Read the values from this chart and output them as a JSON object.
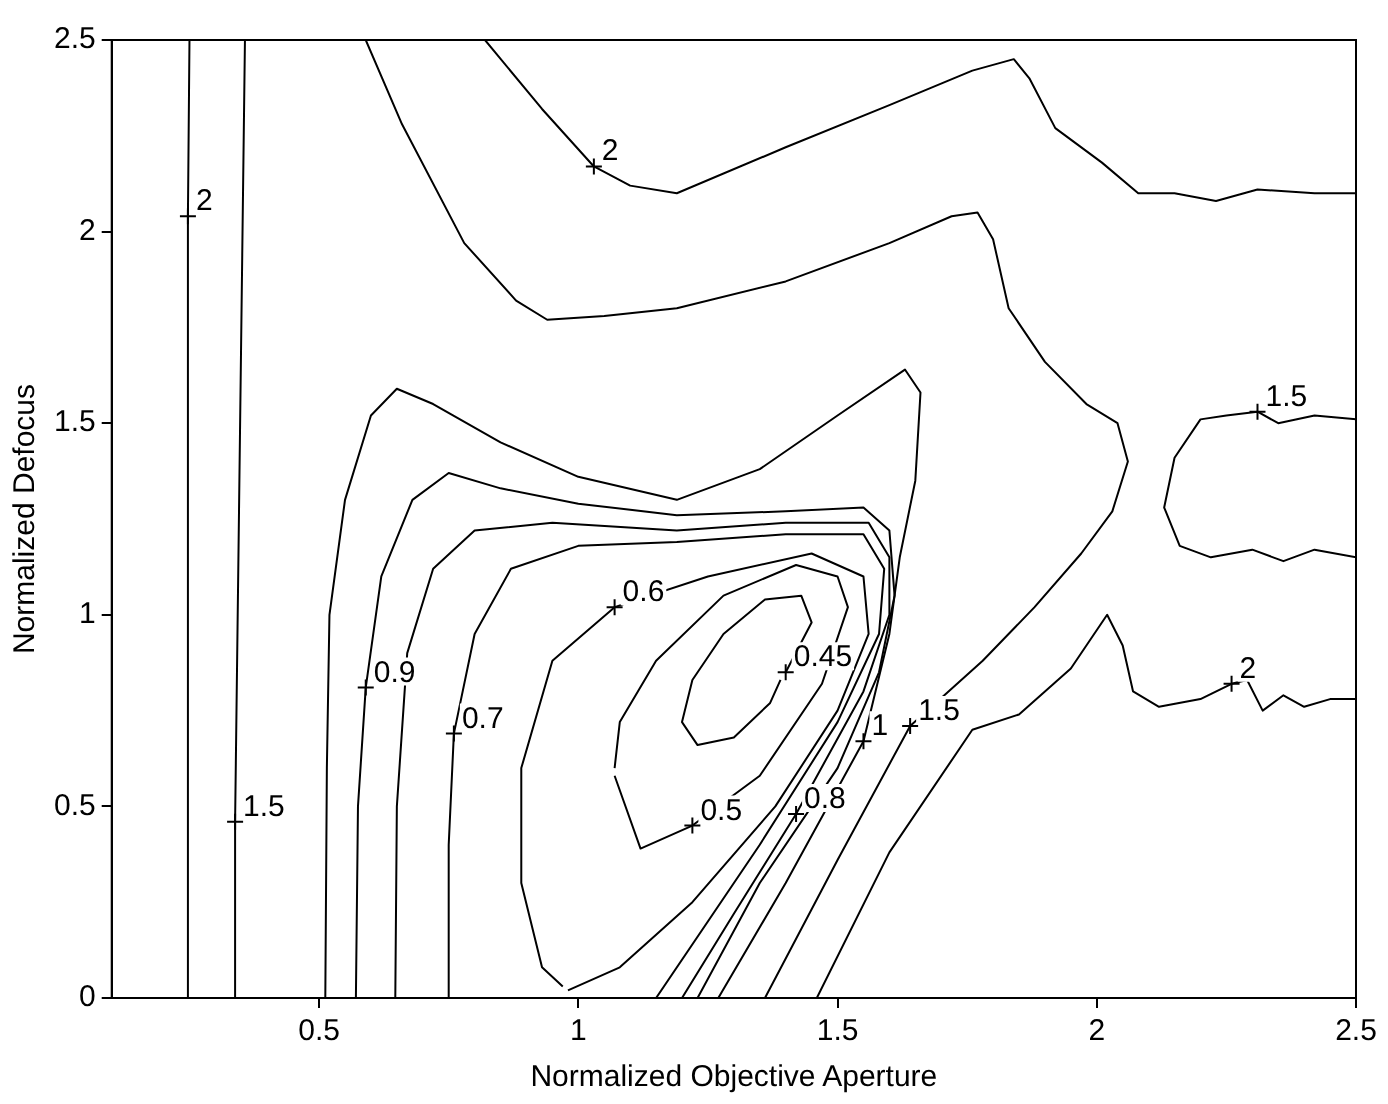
{
  "chart_data": {
    "type": "line",
    "xlabel": "Normalized Objective Aperture",
    "ylabel": "Normalized Defocus",
    "xlim": [
      0.1,
      2.5
    ],
    "ylim": [
      0,
      2.5
    ],
    "xticks": [
      0.5,
      1,
      1.5,
      2,
      2.5
    ],
    "yticks": [
      0,
      0.5,
      1,
      1.5,
      2,
      2.5
    ],
    "grid": false,
    "legend": false,
    "marker": "none",
    "line_style": "solid",
    "series": [
      {
        "color": "#000000",
        "x": [
          0.245,
          0.247,
          0.25
        ],
        "values": [
          0,
          2.04,
          2.5
        ]
      },
      {
        "color": "#000000",
        "x": [
          0.338,
          0.338,
          0.357
        ],
        "values": [
          0,
          0.46,
          2.5
        ]
      },
      {
        "color": "#000000",
        "x": [
          0.59,
          0.66,
          0.78,
          0.88,
          0.94,
          1.05,
          1.19,
          1.4,
          1.6,
          1.72,
          1.77,
          1.8,
          1.83,
          1.9,
          1.98,
          2.04,
          2.06,
          2.03,
          1.97,
          1.88,
          1.78,
          1.64,
          1.5,
          1.36
        ],
        "values": [
          2.5,
          2.28,
          1.97,
          1.82,
          1.77,
          1.78,
          1.8,
          1.87,
          1.97,
          2.04,
          2.05,
          1.98,
          1.8,
          1.66,
          1.55,
          1.5,
          1.4,
          1.27,
          1.16,
          1.02,
          0.88,
          0.71,
          0.36,
          0
        ]
      },
      {
        "color": "#000000",
        "x": [
          2.5,
          2.42,
          2.35,
          2.31,
          2.25,
          2.2,
          2.15,
          2.13,
          2.16,
          2.22,
          2.3,
          2.36,
          2.42,
          2.5
        ],
        "values": [
          1.51,
          1.52,
          1.5,
          1.53,
          1.52,
          1.51,
          1.41,
          1.28,
          1.18,
          1.15,
          1.17,
          1.14,
          1.17,
          1.15
        ]
      },
      {
        "color": "#000000",
        "x": [
          0.82,
          0.93,
          1.03,
          1.1,
          1.19,
          1.4,
          1.6,
          1.76,
          1.84,
          1.87,
          1.92,
          2.01,
          2.08,
          2.15,
          2.23,
          2.31,
          2.42,
          2.5
        ],
        "values": [
          2.5,
          2.32,
          2.17,
          2.12,
          2.1,
          2.22,
          2.33,
          2.42,
          2.45,
          2.4,
          2.27,
          2.18,
          2.1,
          2.1,
          2.08,
          2.11,
          2.1,
          2.1
        ]
      },
      {
        "color": "#000000",
        "x": [
          1.46,
          1.6,
          1.76,
          1.85,
          1.95,
          2.02,
          2.05,
          2.07,
          2.12,
          2.2,
          2.26,
          2.29,
          2.32,
          2.36,
          2.4,
          2.45,
          2.5
        ],
        "values": [
          0,
          0.38,
          0.7,
          0.74,
          0.86,
          1.0,
          0.92,
          0.8,
          0.76,
          0.78,
          0.82,
          0.83,
          0.75,
          0.79,
          0.76,
          0.78,
          0.78
        ]
      },
      {
        "color": "#000000",
        "x": [
          0.512,
          0.515,
          0.52,
          0.55,
          0.6,
          0.65,
          0.72,
          0.85,
          1.0,
          1.19,
          1.35,
          1.5,
          1.63,
          1.66,
          1.65,
          1.62,
          1.6,
          1.55,
          1.4,
          1.27
        ],
        "values": [
          0,
          0.6,
          1.0,
          1.3,
          1.52,
          1.59,
          1.55,
          1.45,
          1.36,
          1.3,
          1.38,
          1.52,
          1.64,
          1.58,
          1.35,
          1.15,
          0.95,
          0.67,
          0.3,
          0
        ]
      },
      {
        "color": "#000000",
        "x": [
          0.571,
          0.575,
          0.59,
          0.62,
          0.68,
          0.75,
          0.85,
          1.0,
          1.19,
          1.4,
          1.55,
          1.6,
          1.61,
          1.58,
          1.5,
          1.35,
          1.23
        ],
        "values": [
          0,
          0.5,
          0.81,
          1.1,
          1.3,
          1.37,
          1.33,
          1.29,
          1.26,
          1.27,
          1.28,
          1.22,
          1.05,
          0.85,
          0.6,
          0.3,
          0
        ]
      },
      {
        "color": "#000000",
        "x": [
          0.647,
          0.65,
          0.67,
          0.72,
          0.8,
          0.95,
          1.19,
          1.4,
          1.56,
          1.6,
          1.6,
          1.55,
          1.42,
          1.3,
          1.2
        ],
        "values": [
          0,
          0.5,
          0.9,
          1.12,
          1.22,
          1.24,
          1.22,
          1.24,
          1.24,
          1.15,
          1.0,
          0.8,
          0.48,
          0.22,
          0
        ]
      },
      {
        "color": "#000000",
        "x": [
          0.75,
          0.75,
          0.76,
          0.8,
          0.87,
          1.0,
          1.19,
          1.4,
          1.55,
          1.59,
          1.58,
          1.5,
          1.35,
          1.15
        ],
        "values": [
          0,
          0.4,
          0.69,
          0.95,
          1.12,
          1.18,
          1.19,
          1.21,
          1.21,
          1.12,
          0.95,
          0.72,
          0.4,
          0
        ]
      },
      {
        "color": "#000000",
        "x": [
          0.98,
          1.08,
          1.22,
          1.38,
          1.5,
          1.56,
          1.55,
          1.45,
          1.25,
          1.07,
          0.95,
          0.89,
          0.89,
          0.93,
          0.97
        ],
        "values": [
          0.02,
          0.08,
          0.25,
          0.5,
          0.75,
          0.95,
          1.1,
          1.16,
          1.1,
          1.02,
          0.88,
          0.6,
          0.3,
          0.08,
          0.03
        ]
      },
      {
        "color": "#000000",
        "x": [
          1.07,
          1.12,
          1.22,
          1.35,
          1.47,
          1.52,
          1.5,
          1.42,
          1.28,
          1.15,
          1.08,
          1.07
        ],
        "values": [
          0.58,
          0.39,
          0.45,
          0.58,
          0.82,
          1.02,
          1.1,
          1.13,
          1.05,
          0.88,
          0.72,
          0.6
        ]
      },
      {
        "color": "#000000",
        "x": [
          1.4,
          1.45,
          1.43,
          1.36,
          1.28,
          1.22,
          1.2,
          1.23,
          1.3,
          1.37,
          1.39
        ],
        "values": [
          0.85,
          0.98,
          1.05,
          1.04,
          0.95,
          0.83,
          0.72,
          0.66,
          0.68,
          0.77,
          0.83
        ]
      }
    ],
    "annotations": [
      {
        "text": "2",
        "x": 0.247,
        "y": 2.04
      },
      {
        "text": "2",
        "x": 1.03,
        "y": 2.17
      },
      {
        "text": "1.5",
        "x": 2.31,
        "y": 1.53
      },
      {
        "text": "0.6",
        "x": 1.07,
        "y": 1.02
      },
      {
        "text": "0.9",
        "x": 0.59,
        "y": 0.81
      },
      {
        "text": "0.7",
        "x": 0.76,
        "y": 0.69
      },
      {
        "text": "0.45",
        "x": 1.4,
        "y": 0.85
      },
      {
        "text": "1",
        "x": 1.55,
        "y": 0.67
      },
      {
        "text": "1.5",
        "x": 1.64,
        "y": 0.71
      },
      {
        "text": "1.5",
        "x": 0.338,
        "y": 0.46
      },
      {
        "text": "0.5",
        "x": 1.22,
        "y": 0.45
      },
      {
        "text": "0.8",
        "x": 1.42,
        "y": 0.48
      },
      {
        "text": "2",
        "x": 2.26,
        "y": 0.82
      }
    ]
  }
}
